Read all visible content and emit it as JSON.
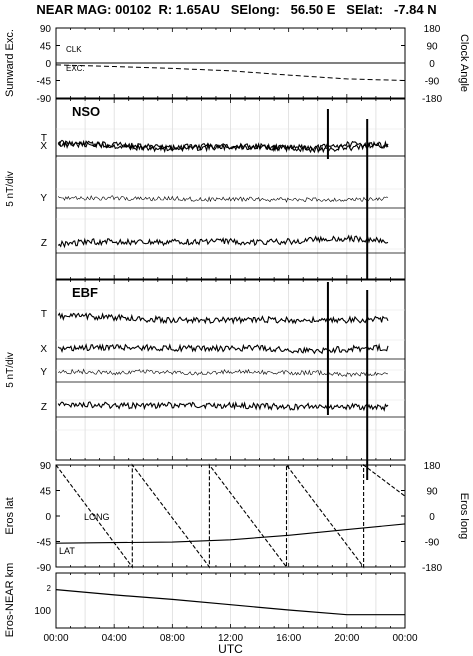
{
  "header": {
    "title": "NEAR MAG: 00102  R: 1.65AU   SElong:   56.50 E   SElat:   -7.84 N"
  },
  "chart_data": [
    {
      "type": "line",
      "panel": "sunward-excursion-clock-angle",
      "ylabel_left": "Sunward Exc.",
      "ylabel_right": "Clock Angle",
      "yticks_left": [
        "90",
        "45",
        "0",
        "-45",
        "-90"
      ],
      "yticks_right": [
        "180",
        "90",
        "0",
        "-90",
        "-180"
      ],
      "ylim_left": [
        -90,
        90
      ],
      "ylim_right": [
        -180,
        180
      ],
      "x_hours": [
        0,
        4,
        8,
        12,
        16,
        20,
        24
      ],
      "annotations": [
        "CLK",
        "EXC."
      ],
      "series": [
        {
          "name": "CLK",
          "axis": "right",
          "style": "dashed",
          "x": [
            0,
            4,
            8,
            12,
            16,
            20,
            24
          ],
          "y": [
            -10,
            -18,
            -28,
            -40,
            -62,
            -82,
            -90
          ]
        },
        {
          "name": "EXC.",
          "axis": "left",
          "style": "solid",
          "x": [
            0,
            4,
            8,
            12,
            16,
            20,
            24
          ],
          "y": [
            0,
            0,
            0,
            0,
            0,
            0,
            0
          ]
        }
      ]
    },
    {
      "type": "line",
      "panel": "NSO",
      "label": "NSO",
      "ylabel": "5 nT/div",
      "x_hours": [
        0,
        4,
        8,
        12,
        16,
        20,
        24
      ],
      "components": [
        "T",
        "X",
        "Y",
        "Z"
      ],
      "spikes_hours": [
        18.7,
        21.4
      ],
      "series": [
        {
          "name": "T",
          "x": [
            0,
            2,
            4,
            6,
            8,
            10,
            12,
            14,
            16,
            18,
            20,
            22,
            24
          ],
          "y": [
            1.3,
            1.0,
            0.6,
            0.2,
            0.1,
            0.3,
            0.4,
            0.3,
            0.2,
            0.3,
            0.9,
            0.8,
            0.8
          ]
        },
        {
          "name": "X",
          "x": [
            0,
            2,
            4,
            6,
            8,
            10,
            12,
            14,
            16,
            18,
            20,
            22,
            24
          ],
          "y": [
            0.9,
            1.0,
            0.8,
            0.5,
            0.3,
            0.5,
            0.6,
            0.5,
            0.2,
            -0.2,
            0.2,
            0.8,
            0.7
          ]
        },
        {
          "name": "Y",
          "x": [
            0,
            2,
            4,
            6,
            8,
            10,
            12,
            14,
            16,
            18,
            20,
            22,
            24
          ],
          "y": [
            0.5,
            0.6,
            0.6,
            0.4,
            0.5,
            0.3,
            0.4,
            0.4,
            0.2,
            0.3,
            0.2,
            0.4,
            0.7
          ]
        },
        {
          "name": "Z",
          "x": [
            0,
            2,
            4,
            6,
            8,
            10,
            12,
            14,
            16,
            18,
            20,
            22,
            24
          ],
          "y": [
            0.3,
            0.8,
            0.9,
            0.6,
            0.8,
            0.9,
            0.9,
            0.7,
            0.9,
            1.3,
            1.5,
            1.2,
            0.9
          ]
        }
      ]
    },
    {
      "type": "line",
      "panel": "EBF",
      "label": "EBF",
      "ylabel": "5 nT/div",
      "x_hours": [
        0,
        4,
        8,
        12,
        16,
        20,
        24
      ],
      "components": [
        "T",
        "X",
        "Y",
        "Z"
      ],
      "spikes_hours": [
        18.7,
        21.4
      ],
      "series": [
        {
          "name": "T",
          "x": [
            0,
            2,
            4,
            6,
            8,
            10,
            12,
            14,
            16,
            18,
            20,
            22,
            24
          ],
          "y": [
            1.7,
            1.8,
            1.5,
            1.2,
            1.0,
            0.9,
            1.0,
            1.1,
            1.0,
            0.9,
            1.0,
            1.1,
            1.0
          ]
        },
        {
          "name": "X",
          "x": [
            0,
            2,
            4,
            6,
            8,
            10,
            12,
            14,
            16,
            18,
            20,
            22,
            24
          ],
          "y": [
            0.4,
            0.8,
            1.0,
            0.9,
            0.8,
            0.7,
            0.7,
            0.8,
            0.4,
            0.3,
            0.6,
            0.8,
            0.8
          ]
        },
        {
          "name": "Y",
          "x": [
            0,
            2,
            4,
            6,
            8,
            10,
            12,
            14,
            16,
            18,
            20,
            22,
            24
          ],
          "y": [
            0.6,
            0.7,
            0.4,
            0.7,
            0.5,
            0.4,
            0.7,
            0.6,
            0.4,
            0.5,
            0.1,
            0.3,
            0.5
          ]
        },
        {
          "name": "Z",
          "x": [
            0,
            2,
            4,
            6,
            8,
            10,
            12,
            14,
            16,
            18,
            20,
            22,
            24
          ],
          "y": [
            1.1,
            1.1,
            0.9,
            0.8,
            1.0,
            0.9,
            0.9,
            0.8,
            0.6,
            0.8,
            0.7,
            0.5,
            0.7
          ]
        }
      ]
    },
    {
      "type": "line",
      "panel": "eros-lat-long",
      "ylabel_left": "Eros lat",
      "ylabel_right": "Eros long",
      "yticks_left": [
        "90",
        "45",
        "0",
        "-45",
        "-90"
      ],
      "yticks_right": [
        "180",
        "90",
        "0",
        "-90",
        "-180"
      ],
      "ylim_left": [
        -90,
        90
      ],
      "ylim_right": [
        -180,
        180
      ],
      "annotations": [
        "LONG",
        "LAT"
      ],
      "series": [
        {
          "name": "LONG",
          "axis": "right",
          "style": "dashed",
          "x": [
            0,
            5.25,
            5.25,
            10.55,
            10.55,
            15.85,
            15.85,
            21.15,
            21.15,
            24
          ],
          "y": [
            180,
            -180,
            180,
            -180,
            180,
            -180,
            180,
            -180,
            180,
            70
          ]
        },
        {
          "name": "LAT",
          "axis": "left",
          "style": "solid",
          "x": [
            0,
            4,
            8,
            12,
            16,
            20,
            24
          ],
          "y": [
            -48,
            -47,
            -46,
            -42,
            -34,
            -24,
            -14
          ]
        }
      ]
    },
    {
      "type": "line",
      "panel": "eros-near-range",
      "ylabel": "Eros-NEAR km",
      "yticks": [
        "2",
        "100"
      ],
      "xlabel": "UTC",
      "x_ticklabels": [
        "00:00",
        "04:00",
        "08:00",
        "12:00",
        "16:00",
        "20:00",
        "00:00"
      ],
      "x_hours": [
        0,
        4,
        8,
        12,
        16,
        20,
        24
      ],
      "series": [
        {
          "name": "range",
          "x": [
            0,
            4,
            8,
            12,
            16,
            20,
            24
          ],
          "y": [
            1.15,
            0.95,
            0.78,
            0.58,
            0.38,
            0.2,
            0.2
          ]
        }
      ]
    }
  ]
}
